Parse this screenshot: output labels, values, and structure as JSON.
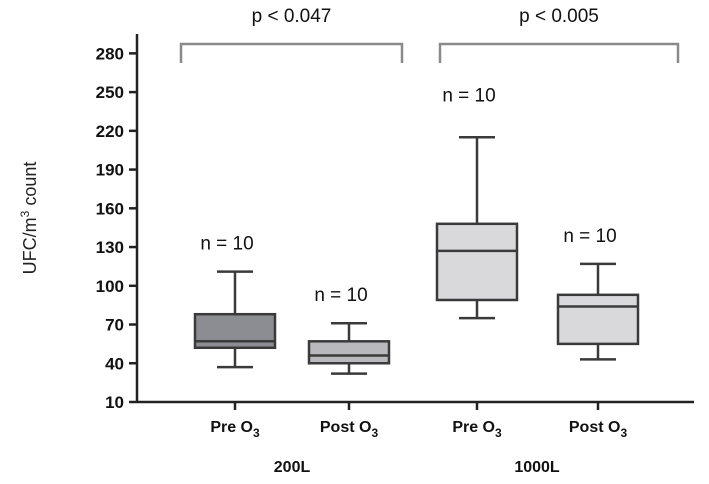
{
  "chart_data": {
    "type": "box",
    "ylabel": "UFC/m³ count",
    "ylim": [
      10,
      295
    ],
    "yticks": [
      10,
      40,
      70,
      100,
      130,
      160,
      190,
      220,
      250,
      280
    ],
    "groups": [
      "200L",
      "1000L"
    ],
    "boxes": [
      {
        "category": "Pre O₃",
        "group": "200L",
        "min": 37,
        "q1": 52,
        "median": 57,
        "q3": 78,
        "max": 111,
        "n_label": "n = 10",
        "color": "#8c8c93"
      },
      {
        "category": "Post O₃",
        "group": "200L",
        "min": 32,
        "q1": 40,
        "median": 46,
        "q3": 57,
        "max": 71,
        "n_label": "n = 10",
        "color": "#b8b8bd"
      },
      {
        "category": "Pre O₃",
        "group": "1000L",
        "min": 75,
        "q1": 89,
        "median": 127,
        "q3": 148,
        "max": 215,
        "n_label": "n  = 10",
        "color": "#d9d9dc"
      },
      {
        "category": "Post O₃",
        "group": "1000L",
        "min": 43,
        "q1": 55,
        "median": 84,
        "q3": 93,
        "max": 117,
        "n_label": "n  = 10",
        "color": "#d9d9dc"
      }
    ],
    "comparisons": [
      {
        "group": "200L",
        "label": "p < 0.047"
      },
      {
        "group": "1000L",
        "label": "p < 0.005"
      }
    ]
  }
}
